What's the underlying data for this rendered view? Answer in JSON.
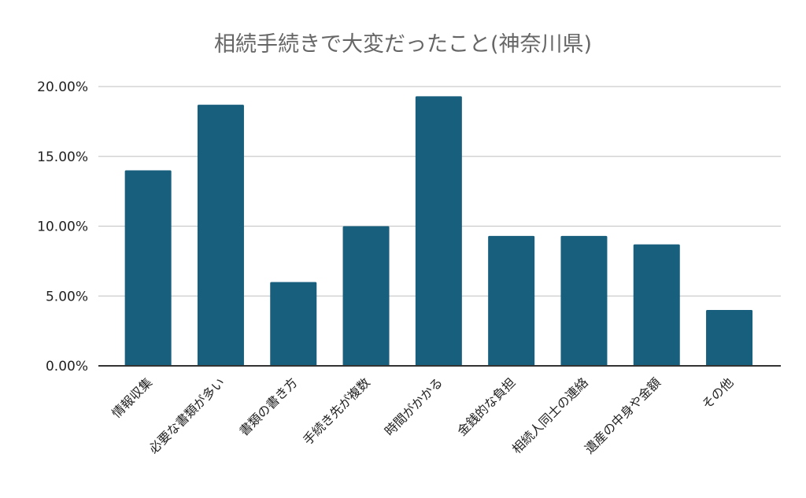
{
  "chart_data": {
    "type": "bar",
    "title": "相続手続きで大変だったこと(神奈川県)",
    "xlabel": "",
    "ylabel": "",
    "categories": [
      "情報収集",
      "必要な書類が多い",
      "書類の書き方",
      "手続き先が複数",
      "時間がかかる",
      "金銭的な負担",
      "相続人同士の連絡",
      "遺産の中身や金額",
      "その他"
    ],
    "values": [
      14.0,
      18.7,
      6.0,
      10.0,
      19.3,
      9.3,
      9.3,
      8.7,
      4.0
    ],
    "ylim": [
      0,
      20
    ],
    "yticks": [
      0,
      5,
      10,
      15,
      20
    ],
    "ytick_labels": [
      "0.00%",
      "5.00%",
      "10.00%",
      "15.00%",
      "20.00%"
    ],
    "grid": true,
    "legend": "none",
    "bar_color": "#175f7d",
    "gridline_color": "#cccccc",
    "axis_color": "#333333"
  }
}
